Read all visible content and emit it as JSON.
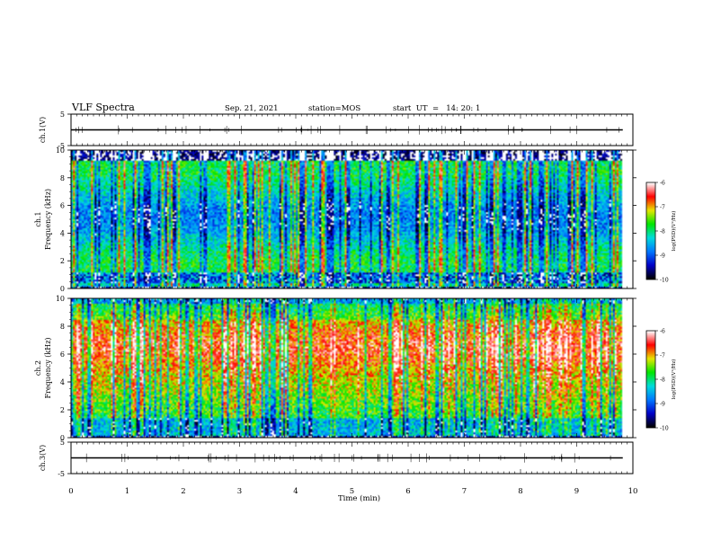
{
  "header": {
    "title": "VLF Spectra",
    "date": "Sep. 21, 2021",
    "station": "station=MOS",
    "start": "start  UT  =   14: 20: 1"
  },
  "chart_data": [
    {
      "type": "line",
      "name": "ch1-waveform",
      "ylabel": "ch.1(V)",
      "ylim": [
        -5,
        5
      ],
      "yticks": [
        "5",
        "-5"
      ],
      "xlim": [
        0,
        10
      ],
      "baseline": 0
    },
    {
      "type": "heatmap",
      "name": "ch1-spectrogram",
      "ylabel_top": "ch.1",
      "ylabel": "Frequency (kHz)",
      "xlim": [
        0,
        10
      ],
      "ylim": [
        0,
        10
      ],
      "yticks": [
        "0",
        "2",
        "4",
        "6",
        "8",
        "10"
      ],
      "data_end_min": 9.82,
      "colorbar": {
        "label": "log(PSD)(V²/Hz)",
        "range": [
          -10,
          -6
        ],
        "ticks": [
          "-6",
          "-7",
          "-8",
          "-9",
          "-10"
        ]
      }
    },
    {
      "type": "heatmap",
      "name": "ch2-spectrogram",
      "ylabel_top": "ch.2",
      "ylabel": "Frequency (kHz)",
      "xlim": [
        0,
        10
      ],
      "ylim": [
        0,
        10
      ],
      "yticks": [
        "0",
        "2",
        "4",
        "6",
        "8",
        "10"
      ],
      "data_end_min": 9.82,
      "colorbar": {
        "label": "log(PSD)(V²/Hz)",
        "range": [
          -10,
          -6
        ],
        "ticks": [
          "-6",
          "-7",
          "-8",
          "-9",
          "-10"
        ]
      }
    },
    {
      "type": "line",
      "name": "ch3-waveform",
      "ylabel": "ch.3(V)",
      "ylim": [
        -5,
        5
      ],
      "yticks": [
        "5",
        "-5"
      ],
      "xlim": [
        0,
        10
      ],
      "baseline": 0
    }
  ],
  "xaxis": {
    "label": "Time (min)",
    "ticks": [
      "0",
      "1",
      "2",
      "3",
      "4",
      "5",
      "6",
      "7",
      "8",
      "9",
      "10"
    ]
  },
  "colors": {
    "frame": "#000000",
    "colormap": [
      "#000000",
      "#0000c8",
      "#0078ff",
      "#00dcdc",
      "#00e600",
      "#e6e600",
      "#ff0000",
      "#ffffff"
    ]
  }
}
